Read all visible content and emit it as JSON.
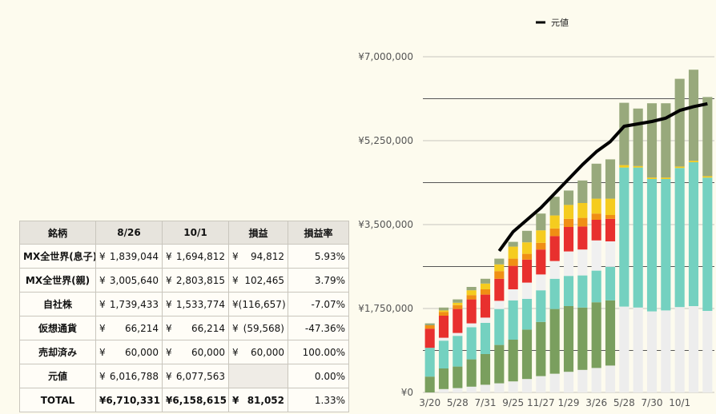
{
  "table": {
    "headers": [
      "銘柄",
      "8/26",
      "10/1",
      "損益",
      "損益率"
    ],
    "rows": [
      {
        "name": "MX全世界(息子)",
        "a": "1,839,044",
        "b": "1,694,812",
        "pl": "94,812",
        "rate": "5.93%"
      },
      {
        "name": "MX全世界(親)",
        "a": "3,005,640",
        "b": "2,803,815",
        "pl": "102,465",
        "rate": "3.79%"
      },
      {
        "name": "自社株",
        "a": "1,739,433",
        "b": "1,533,774",
        "pl": "(116,657)",
        "rate": "-7.07%"
      },
      {
        "name": "仮想通貨",
        "a": "66,214",
        "b": "66,214",
        "pl": "(59,568)",
        "rate": "-47.36%"
      },
      {
        "name": "売却済み",
        "a": "60,000",
        "b": "60,000",
        "pl": "60,000",
        "rate": "100.00%"
      },
      {
        "name": "元値",
        "a": "6,016,788",
        "b": "6,077,563",
        "pl": "",
        "rate": "0.00%"
      }
    ],
    "total": {
      "name": "TOTAL",
      "a": "¥6,710,331",
      "b": "¥6,158,615",
      "pl": "81,052",
      "rate": "1.33%"
    },
    "currency_symbol": "¥"
  },
  "chart_data": {
    "type": "bar",
    "stacked": true,
    "legend": {
      "label": "元値",
      "position": "top"
    },
    "ylim": [
      0,
      7000000
    ],
    "y_ticks": [
      "¥0",
      "¥1,750,000",
      "¥3,500,000",
      "¥5,250,000",
      "¥7,000,000"
    ],
    "x_tick_labels": [
      "3/20",
      "5/28",
      "7/31",
      "9/25",
      "11/27",
      "1/29",
      "3/26",
      "5/28",
      "7/30",
      "10/1"
    ],
    "series_colors": [
      "#ededed",
      "#7a9f5e",
      "#74d1c0",
      "#f0f0f0",
      "#e8302e",
      "#f08f14",
      "#f5cc1f",
      "#98a97c"
    ],
    "line_color": "#000000",
    "stack_values": [
      [
        0,
        330000,
        600000,
        0,
        400000,
        70000,
        0,
        40000
      ],
      [
        70000,
        430000,
        580000,
        60000,
        460000,
        80000,
        30000,
        60000
      ],
      [
        90000,
        450000,
        640000,
        60000,
        500000,
        80000,
        50000,
        70000
      ],
      [
        120000,
        570000,
        670000,
        80000,
        500000,
        90000,
        100000,
        70000
      ],
      [
        160000,
        640000,
        650000,
        110000,
        480000,
        110000,
        120000,
        100000
      ],
      [
        190000,
        800000,
        750000,
        170000,
        460000,
        160000,
        140000,
        120000
      ],
      [
        230000,
        870000,
        820000,
        230000,
        490000,
        150000,
        250000,
        100000
      ],
      [
        280000,
        1030000,
        640000,
        340000,
        480000,
        120000,
        240000,
        240000
      ],
      [
        340000,
        1130000,
        660000,
        330000,
        520000,
        140000,
        260000,
        350000
      ],
      [
        390000,
        1350000,
        630000,
        370000,
        520000,
        160000,
        270000,
        390000
      ],
      [
        430000,
        1370000,
        630000,
        510000,
        510000,
        170000,
        290000,
        300000
      ],
      [
        470000,
        1300000,
        670000,
        540000,
        480000,
        180000,
        310000,
        470000
      ],
      [
        510000,
        1370000,
        660000,
        630000,
        430000,
        130000,
        310000,
        730000
      ],
      [
        560000,
        1360000,
        700000,
        530000,
        470000,
        80000,
        340000,
        820000
      ],
      [
        1790000,
        0,
        2900000,
        0,
        0,
        0,
        50000,
        1300000
      ],
      [
        1770000,
        0,
        2920000,
        0,
        0,
        0,
        30000,
        1200000
      ],
      [
        1690000,
        0,
        2760000,
        0,
        0,
        0,
        30000,
        1550000
      ],
      [
        1710000,
        0,
        2740000,
        0,
        0,
        0,
        30000,
        1550000
      ],
      [
        1780000,
        0,
        2900000,
        0,
        0,
        0,
        30000,
        1830000
      ],
      [
        1800000,
        0,
        3000000,
        0,
        0,
        0,
        30000,
        1900000
      ],
      [
        1700000,
        0,
        2780000,
        0,
        0,
        0,
        30000,
        1650000
      ]
    ],
    "line_values": [
      null,
      null,
      null,
      null,
      null,
      2950000,
      3350000,
      3600000,
      3850000,
      4150000,
      4450000,
      4750000,
      5020000,
      5230000,
      5550000,
      5600000,
      5650000,
      5720000,
      5880000,
      5960000,
      6020000
    ]
  }
}
